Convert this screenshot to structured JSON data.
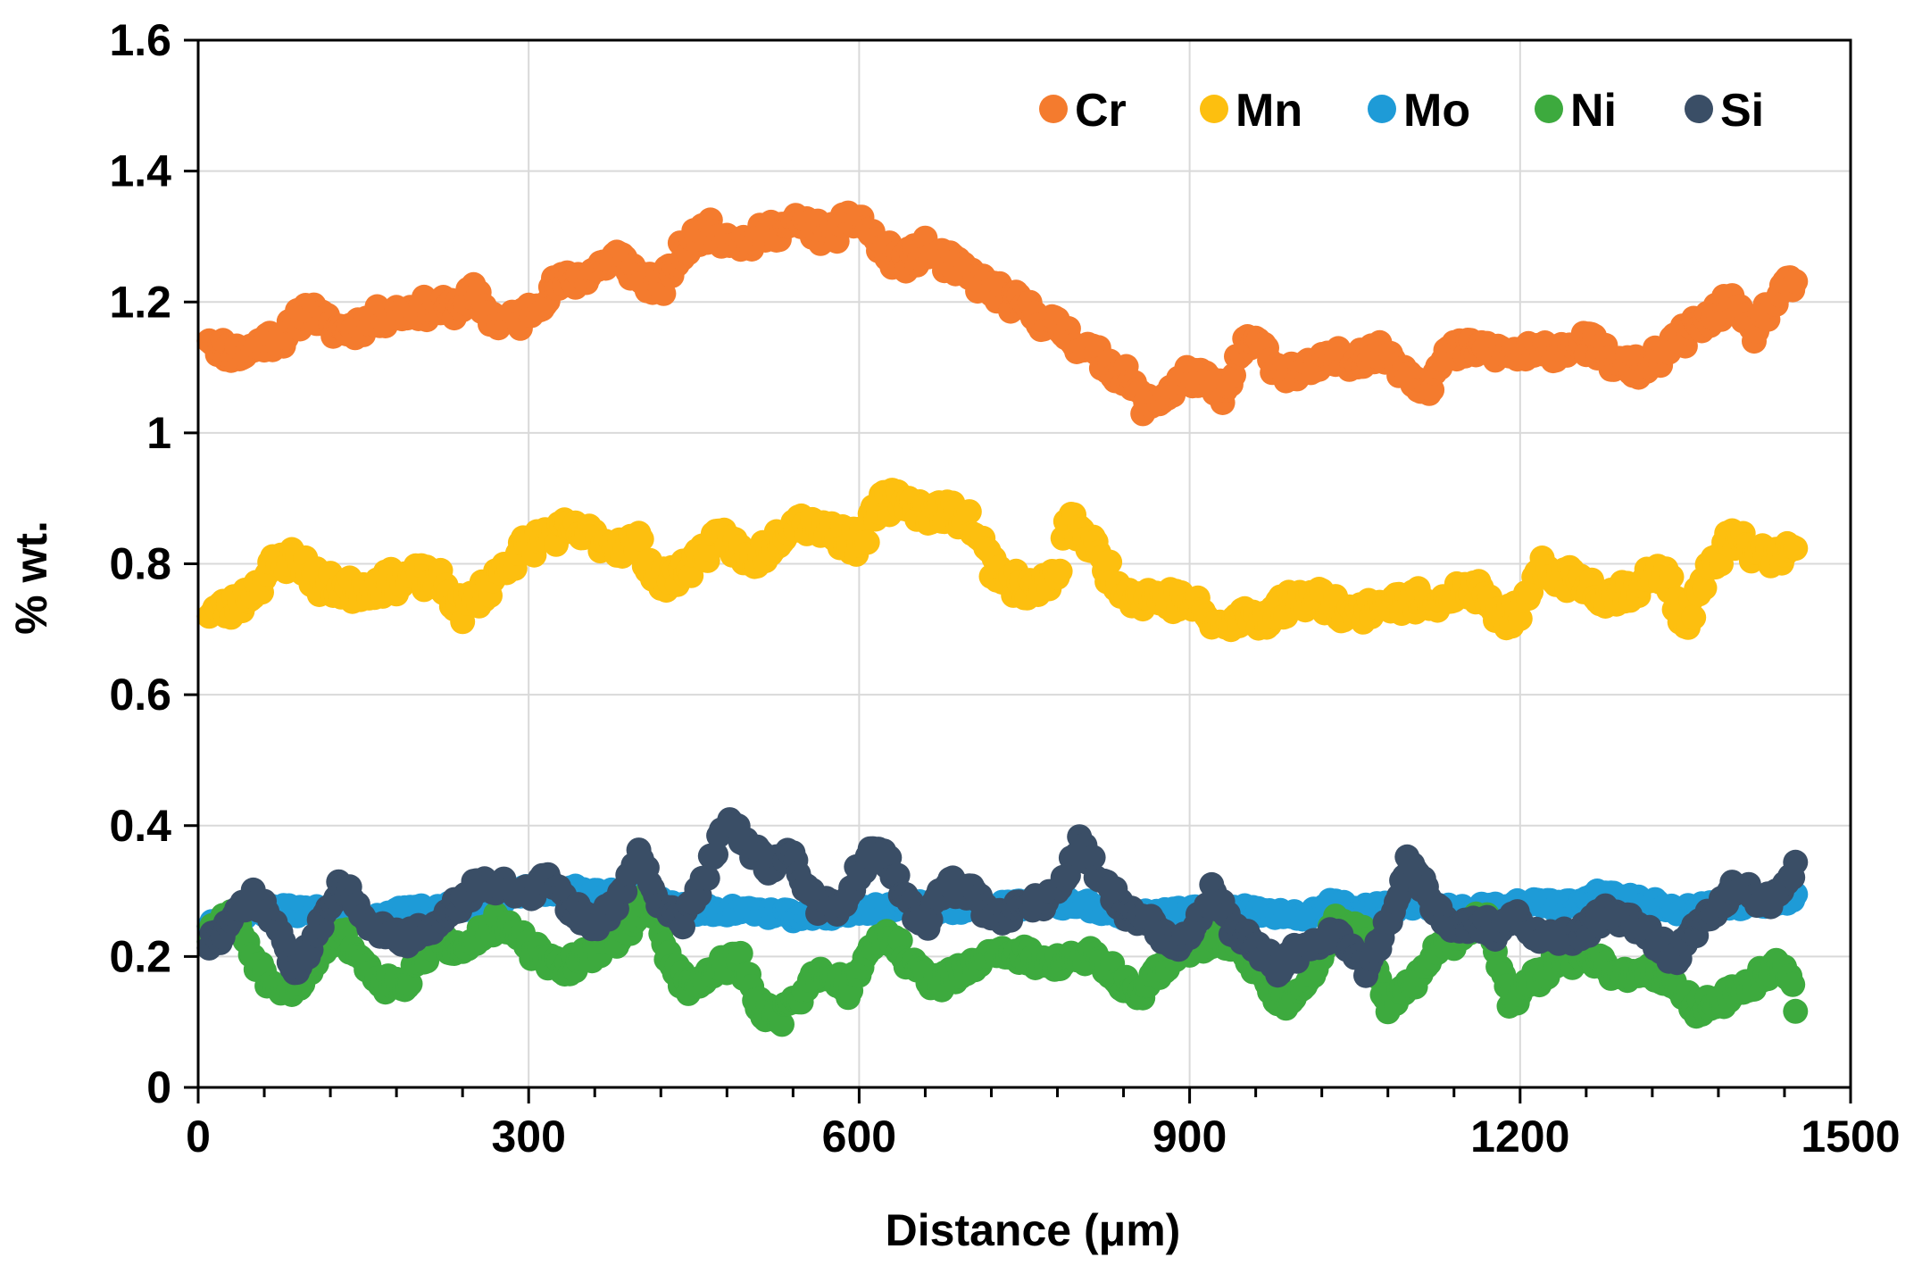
{
  "chart_data": {
    "type": "scatter",
    "title": "",
    "xlabel": "Distance (μm)",
    "ylabel": "% wt.",
    "xlim": [
      0,
      1500
    ],
    "ylim": [
      0,
      1.6
    ],
    "xticks": [
      0,
      300,
      600,
      900,
      1200,
      1500
    ],
    "xtick_labels": [
      "0",
      "300",
      "600",
      "900",
      "1200",
      "1500"
    ],
    "yticks": [
      0,
      0.2,
      0.4,
      0.6,
      0.8,
      1,
      1.2,
      1.4,
      1.6
    ],
    "ytick_labels": [
      "0",
      "0.2",
      "0.4",
      "0.6",
      "0.8",
      "1",
      "1.2",
      "1.4",
      "1.6"
    ],
    "grid": true,
    "legend_position": "top-right",
    "sample_step": 2.5,
    "series": [
      {
        "name": "Cr",
        "color": "#F47B2E",
        "anchors": [
          [
            10,
            1.15
          ],
          [
            20,
            1.13
          ],
          [
            40,
            1.12
          ],
          [
            60,
            1.14
          ],
          [
            80,
            1.15
          ],
          [
            100,
            1.19
          ],
          [
            120,
            1.16
          ],
          [
            140,
            1.16
          ],
          [
            170,
            1.18
          ],
          [
            200,
            1.19
          ],
          [
            230,
            1.19
          ],
          [
            250,
            1.21
          ],
          [
            270,
            1.17
          ],
          [
            290,
            1.17
          ],
          [
            320,
            1.22
          ],
          [
            350,
            1.24
          ],
          [
            380,
            1.27
          ],
          [
            400,
            1.24
          ],
          [
            420,
            1.22
          ],
          [
            440,
            1.28
          ],
          [
            460,
            1.31
          ],
          [
            480,
            1.3
          ],
          [
            500,
            1.29
          ],
          [
            520,
            1.31
          ],
          [
            550,
            1.32
          ],
          [
            570,
            1.3
          ],
          [
            600,
            1.33
          ],
          [
            620,
            1.28
          ],
          [
            640,
            1.26
          ],
          [
            660,
            1.28
          ],
          [
            700,
            1.24
          ],
          [
            730,
            1.21
          ],
          [
            760,
            1.18
          ],
          [
            790,
            1.15
          ],
          [
            820,
            1.11
          ],
          [
            840,
            1.09
          ],
          [
            860,
            1.04
          ],
          [
            880,
            1.06
          ],
          [
            900,
            1.09
          ],
          [
            920,
            1.07
          ],
          [
            935,
            1.06
          ],
          [
            950,
            1.14
          ],
          [
            965,
            1.13
          ],
          [
            980,
            1.1
          ],
          [
            1000,
            1.09
          ],
          [
            1030,
            1.11
          ],
          [
            1060,
            1.12
          ],
          [
            1080,
            1.12
          ],
          [
            1100,
            1.09
          ],
          [
            1115,
            1.07
          ],
          [
            1135,
            1.12
          ],
          [
            1160,
            1.13
          ],
          [
            1190,
            1.12
          ],
          [
            1220,
            1.12
          ],
          [
            1250,
            1.14
          ],
          [
            1270,
            1.13
          ],
          [
            1290,
            1.1
          ],
          [
            1310,
            1.1
          ],
          [
            1330,
            1.12
          ],
          [
            1350,
            1.15
          ],
          [
            1370,
            1.17
          ],
          [
            1390,
            1.2
          ],
          [
            1410,
            1.15
          ],
          [
            1430,
            1.2
          ],
          [
            1450,
            1.23
          ]
        ],
        "amp": 0.018,
        "seed": 11
      },
      {
        "name": "Mn",
        "color": "#FDBF0F",
        "anchors": [
          [
            10,
            0.73
          ],
          [
            30,
            0.73
          ],
          [
            50,
            0.76
          ],
          [
            70,
            0.8
          ],
          [
            90,
            0.81
          ],
          [
            110,
            0.77
          ],
          [
            140,
            0.76
          ],
          [
            170,
            0.77
          ],
          [
            200,
            0.78
          ],
          [
            220,
            0.77
          ],
          [
            240,
            0.73
          ],
          [
            260,
            0.76
          ],
          [
            280,
            0.8
          ],
          [
            300,
            0.83
          ],
          [
            330,
            0.85
          ],
          [
            360,
            0.84
          ],
          [
            380,
            0.83
          ],
          [
            400,
            0.83
          ],
          [
            420,
            0.77
          ],
          [
            440,
            0.79
          ],
          [
            460,
            0.82
          ],
          [
            480,
            0.84
          ],
          [
            500,
            0.8
          ],
          [
            520,
            0.83
          ],
          [
            540,
            0.87
          ],
          [
            560,
            0.86
          ],
          [
            600,
            0.83
          ],
          [
            620,
            0.89
          ],
          [
            640,
            0.9
          ],
          [
            660,
            0.88
          ],
          [
            680,
            0.88
          ],
          [
            700,
            0.87
          ],
          [
            720,
            0.8
          ],
          [
            740,
            0.77
          ],
          [
            760,
            0.76
          ],
          [
            780,
            0.78
          ],
          [
            790,
            0.87
          ],
          [
            810,
            0.83
          ],
          [
            830,
            0.78
          ],
          [
            850,
            0.75
          ],
          [
            870,
            0.75
          ],
          [
            900,
            0.74
          ],
          [
            930,
            0.7
          ],
          [
            950,
            0.72
          ],
          [
            970,
            0.72
          ],
          [
            1000,
            0.75
          ],
          [
            1030,
            0.74
          ],
          [
            1050,
            0.72
          ],
          [
            1070,
            0.74
          ],
          [
            1100,
            0.74
          ],
          [
            1130,
            0.75
          ],
          [
            1160,
            0.76
          ],
          [
            1180,
            0.72
          ],
          [
            1200,
            0.72
          ],
          [
            1220,
            0.79
          ],
          [
            1240,
            0.78
          ],
          [
            1260,
            0.77
          ],
          [
            1280,
            0.75
          ],
          [
            1310,
            0.77
          ],
          [
            1330,
            0.79
          ],
          [
            1350,
            0.71
          ],
          [
            1370,
            0.78
          ],
          [
            1390,
            0.84
          ],
          [
            1410,
            0.82
          ],
          [
            1430,
            0.81
          ],
          [
            1450,
            0.82
          ]
        ],
        "amp": 0.02,
        "seed": 23
      },
      {
        "name": "Mo",
        "color": "#1E9BD7",
        "anchors": [
          [
            10,
            0.25
          ],
          [
            50,
            0.27
          ],
          [
            100,
            0.27
          ],
          [
            150,
            0.26
          ],
          [
            200,
            0.27
          ],
          [
            250,
            0.28
          ],
          [
            300,
            0.3
          ],
          [
            350,
            0.3
          ],
          [
            400,
            0.29
          ],
          [
            450,
            0.27
          ],
          [
            500,
            0.27
          ],
          [
            550,
            0.26
          ],
          [
            600,
            0.27
          ],
          [
            650,
            0.28
          ],
          [
            700,
            0.27
          ],
          [
            750,
            0.28
          ],
          [
            800,
            0.28
          ],
          [
            850,
            0.26
          ],
          [
            900,
            0.27
          ],
          [
            950,
            0.27
          ],
          [
            1000,
            0.26
          ],
          [
            1030,
            0.28
          ],
          [
            1050,
            0.27
          ],
          [
            1100,
            0.28
          ],
          [
            1150,
            0.27
          ],
          [
            1200,
            0.28
          ],
          [
            1250,
            0.28
          ],
          [
            1280,
            0.3
          ],
          [
            1300,
            0.29
          ],
          [
            1350,
            0.27
          ],
          [
            1400,
            0.28
          ],
          [
            1450,
            0.29
          ]
        ],
        "amp": 0.008,
        "seed": 37
      },
      {
        "name": "Ni",
        "color": "#3DAA3E",
        "anchors": [
          [
            10,
            0.23
          ],
          [
            30,
            0.27
          ],
          [
            50,
            0.2
          ],
          [
            70,
            0.14
          ],
          [
            90,
            0.15
          ],
          [
            110,
            0.21
          ],
          [
            130,
            0.24
          ],
          [
            150,
            0.19
          ],
          [
            170,
            0.16
          ],
          [
            190,
            0.16
          ],
          [
            210,
            0.21
          ],
          [
            240,
            0.22
          ],
          [
            270,
            0.25
          ],
          [
            290,
            0.23
          ],
          [
            310,
            0.2
          ],
          [
            330,
            0.18
          ],
          [
            360,
            0.21
          ],
          [
            390,
            0.24
          ],
          [
            410,
            0.29
          ],
          [
            430,
            0.18
          ],
          [
            450,
            0.15
          ],
          [
            470,
            0.18
          ],
          [
            490,
            0.2
          ],
          [
            510,
            0.12
          ],
          [
            530,
            0.11
          ],
          [
            550,
            0.15
          ],
          [
            570,
            0.18
          ],
          [
            590,
            0.15
          ],
          [
            610,
            0.22
          ],
          [
            630,
            0.23
          ],
          [
            650,
            0.18
          ],
          [
            670,
            0.16
          ],
          [
            700,
            0.18
          ],
          [
            720,
            0.21
          ],
          [
            750,
            0.2
          ],
          [
            780,
            0.19
          ],
          [
            810,
            0.2
          ],
          [
            830,
            0.18
          ],
          [
            850,
            0.14
          ],
          [
            870,
            0.17
          ],
          [
            890,
            0.21
          ],
          [
            910,
            0.22
          ],
          [
            930,
            0.23
          ],
          [
            950,
            0.21
          ],
          [
            970,
            0.15
          ],
          [
            990,
            0.13
          ],
          [
            1010,
            0.17
          ],
          [
            1030,
            0.25
          ],
          [
            1060,
            0.23
          ],
          [
            1080,
            0.13
          ],
          [
            1100,
            0.15
          ],
          [
            1120,
            0.2
          ],
          [
            1150,
            0.24
          ],
          [
            1170,
            0.26
          ],
          [
            1190,
            0.13
          ],
          [
            1210,
            0.16
          ],
          [
            1230,
            0.19
          ],
          [
            1260,
            0.2
          ],
          [
            1280,
            0.18
          ],
          [
            1300,
            0.17
          ],
          [
            1320,
            0.18
          ],
          [
            1340,
            0.16
          ],
          [
            1360,
            0.12
          ],
          [
            1380,
            0.13
          ],
          [
            1400,
            0.15
          ],
          [
            1420,
            0.17
          ],
          [
            1440,
            0.19
          ],
          [
            1450,
            0.13
          ]
        ],
        "amp": 0.015,
        "seed": 51
      },
      {
        "name": "Si",
        "color": "#3A4E66",
        "anchors": [
          [
            10,
            0.22
          ],
          [
            30,
            0.25
          ],
          [
            50,
            0.29
          ],
          [
            70,
            0.25
          ],
          [
            90,
            0.17
          ],
          [
            110,
            0.25
          ],
          [
            130,
            0.32
          ],
          [
            150,
            0.25
          ],
          [
            170,
            0.24
          ],
          [
            190,
            0.23
          ],
          [
            210,
            0.24
          ],
          [
            230,
            0.27
          ],
          [
            250,
            0.3
          ],
          [
            270,
            0.31
          ],
          [
            300,
            0.3
          ],
          [
            320,
            0.32
          ],
          [
            340,
            0.27
          ],
          [
            360,
            0.25
          ],
          [
            380,
            0.28
          ],
          [
            400,
            0.35
          ],
          [
            420,
            0.28
          ],
          [
            440,
            0.26
          ],
          [
            460,
            0.32
          ],
          [
            480,
            0.41
          ],
          [
            500,
            0.36
          ],
          [
            520,
            0.34
          ],
          [
            540,
            0.35
          ],
          [
            560,
            0.28
          ],
          [
            580,
            0.27
          ],
          [
            600,
            0.33
          ],
          [
            620,
            0.37
          ],
          [
            640,
            0.29
          ],
          [
            660,
            0.25
          ],
          [
            680,
            0.31
          ],
          [
            700,
            0.3
          ],
          [
            720,
            0.26
          ],
          [
            740,
            0.27
          ],
          [
            760,
            0.28
          ],
          [
            780,
            0.3
          ],
          [
            800,
            0.37
          ],
          [
            820,
            0.32
          ],
          [
            840,
            0.27
          ],
          [
            860,
            0.26
          ],
          [
            880,
            0.22
          ],
          [
            900,
            0.22
          ],
          [
            920,
            0.3
          ],
          [
            940,
            0.24
          ],
          [
            960,
            0.22
          ],
          [
            980,
            0.18
          ],
          [
            1000,
            0.21
          ],
          [
            1020,
            0.23
          ],
          [
            1040,
            0.23
          ],
          [
            1060,
            0.18
          ],
          [
            1080,
            0.25
          ],
          [
            1100,
            0.35
          ],
          [
            1120,
            0.28
          ],
          [
            1140,
            0.24
          ],
          [
            1160,
            0.25
          ],
          [
            1180,
            0.24
          ],
          [
            1200,
            0.26
          ],
          [
            1220,
            0.22
          ],
          [
            1240,
            0.23
          ],
          [
            1260,
            0.24
          ],
          [
            1280,
            0.27
          ],
          [
            1300,
            0.25
          ],
          [
            1320,
            0.23
          ],
          [
            1340,
            0.2
          ],
          [
            1360,
            0.24
          ],
          [
            1380,
            0.28
          ],
          [
            1400,
            0.31
          ],
          [
            1420,
            0.28
          ],
          [
            1440,
            0.3
          ],
          [
            1450,
            0.33
          ]
        ],
        "amp": 0.015,
        "seed": 73
      }
    ]
  }
}
